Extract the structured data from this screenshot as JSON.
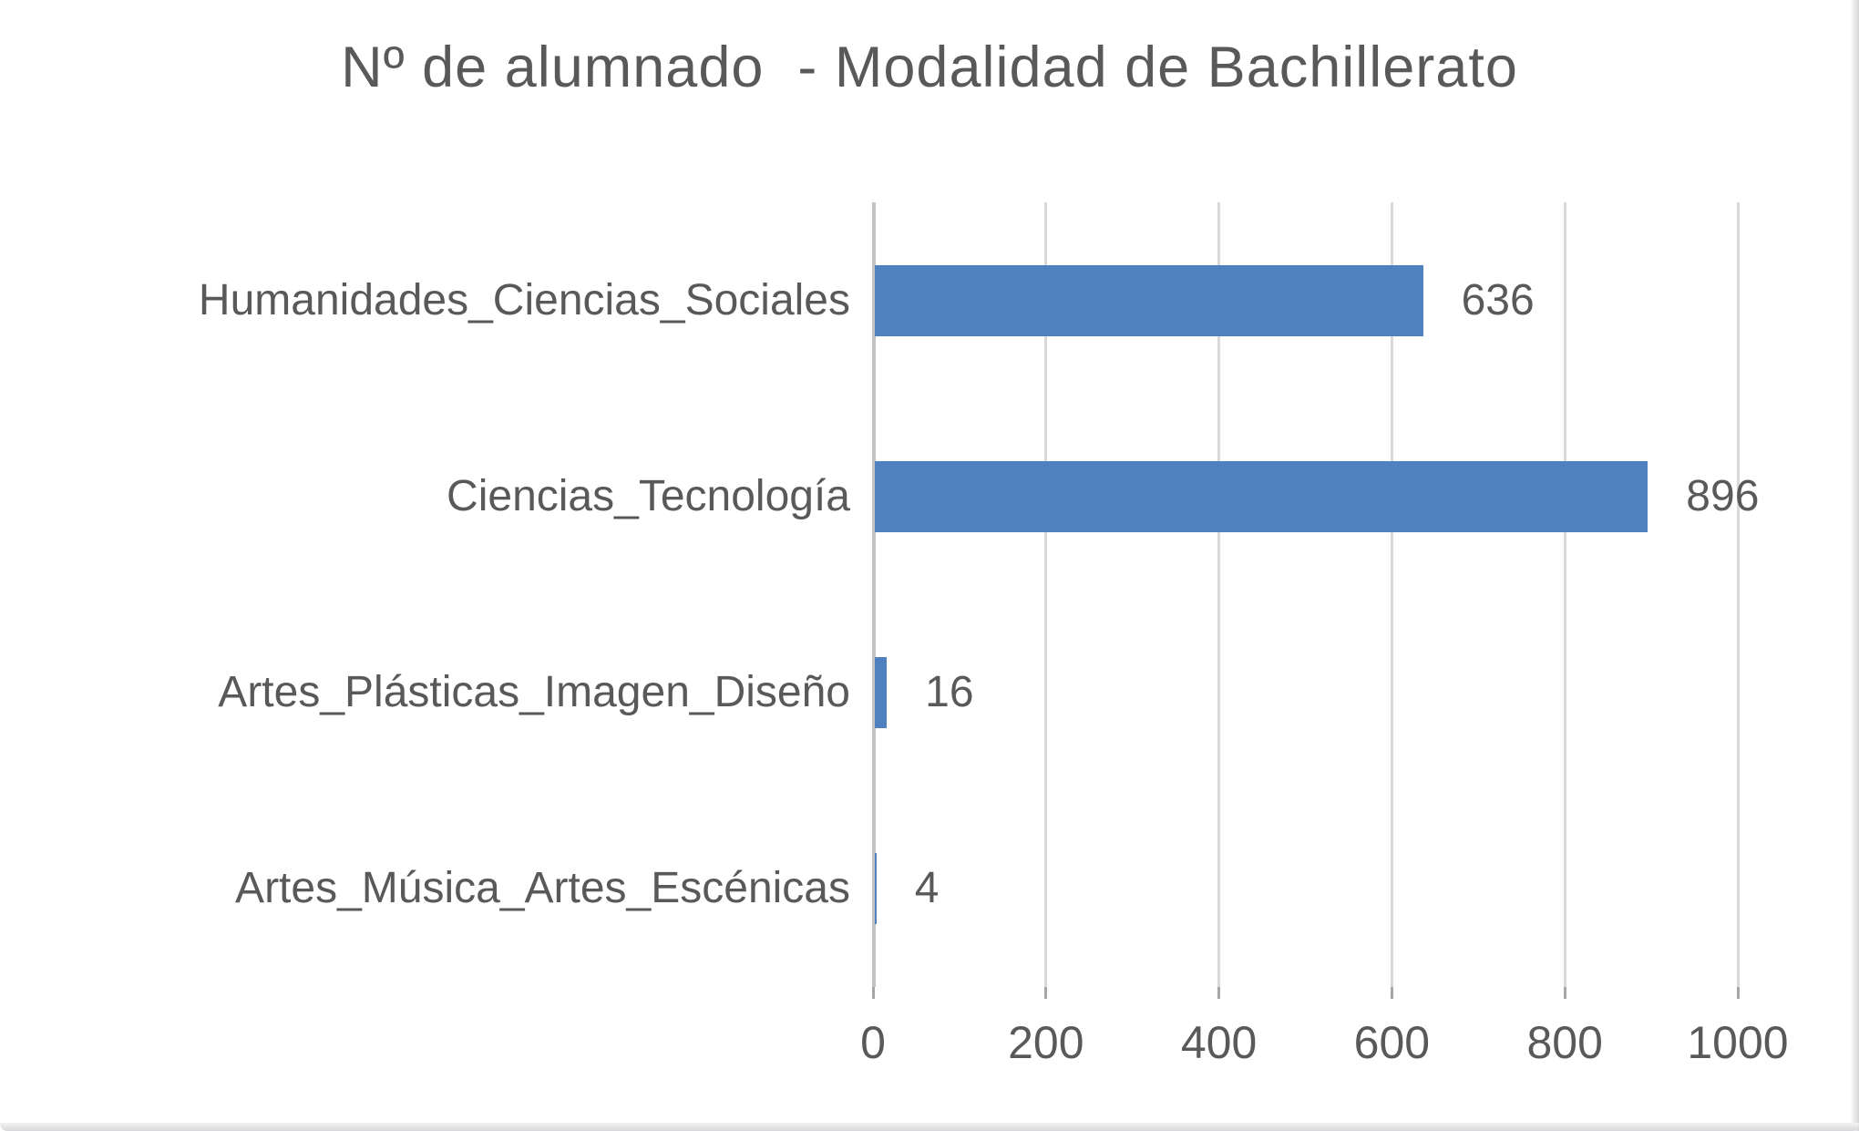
{
  "chart_data": {
    "type": "bar",
    "orientation": "horizontal",
    "title": "Nº de alumnado  - Modalidad de Bachillerato",
    "categories": [
      "Humanidades_Ciencias_Sociales",
      "Ciencias_Tecnología",
      "Artes_Plásticas_Imagen_Diseño",
      "Artes_Música_Artes_Escénicas"
    ],
    "values": [
      636,
      896,
      16,
      4
    ],
    "data_labels": [
      "636",
      "896",
      "16",
      "4"
    ],
    "xlabel": "",
    "ylabel": "",
    "xlim": [
      0,
      1000
    ],
    "x_ticks": [
      0,
      200,
      400,
      600,
      800,
      1000
    ],
    "grid": true,
    "legend": false,
    "bar_color": "#4e81bd",
    "gridline_color": "#d9d9d9",
    "axis_line_color": "#c3c3c6",
    "tick_color": "#a6a6a6",
    "text_color": "#595959"
  }
}
